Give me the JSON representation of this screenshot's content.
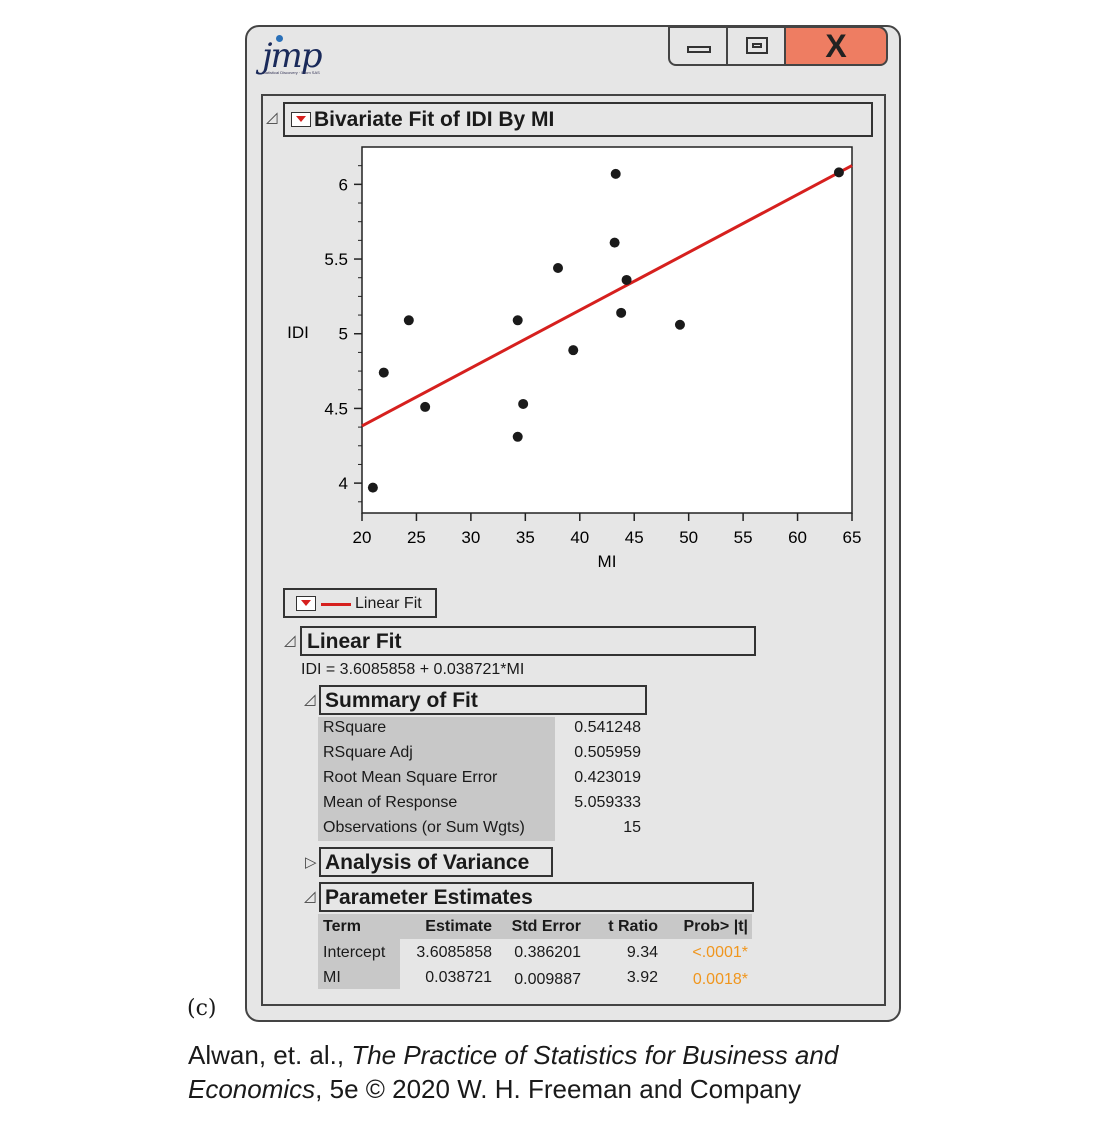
{
  "window": {
    "logo_text": "jmp",
    "logo_tagline": "Statistical Discovery · From SAS",
    "close_glyph": "X"
  },
  "bivariate": {
    "title": "Bivariate Fit of IDI By MI"
  },
  "chart_data": {
    "type": "scatter",
    "title": "",
    "xlabel": "MI",
    "ylabel": "IDI",
    "xlim": [
      20,
      65
    ],
    "ylim": [
      3.8,
      6.25
    ],
    "x_ticks": [
      20,
      25,
      30,
      35,
      40,
      45,
      50,
      55,
      60,
      65
    ],
    "y_ticks": [
      4,
      4.5,
      5,
      5.5,
      6
    ],
    "grid": false,
    "points": [
      {
        "x": 21.0,
        "y": 3.97
      },
      {
        "x": 22.0,
        "y": 4.74
      },
      {
        "x": 24.3,
        "y": 5.09
      },
      {
        "x": 25.8,
        "y": 4.51
      },
      {
        "x": 34.3,
        "y": 5.09
      },
      {
        "x": 34.3,
        "y": 4.31
      },
      {
        "x": 34.8,
        "y": 4.53
      },
      {
        "x": 38.0,
        "y": 5.44
      },
      {
        "x": 39.4,
        "y": 4.89
      },
      {
        "x": 43.2,
        "y": 5.61
      },
      {
        "x": 43.3,
        "y": 6.07
      },
      {
        "x": 43.8,
        "y": 5.14
      },
      {
        "x": 44.3,
        "y": 5.36
      },
      {
        "x": 49.2,
        "y": 5.06
      },
      {
        "x": 63.8,
        "y": 6.08
      }
    ],
    "fit_line": {
      "intercept": 3.6085858,
      "slope": 0.038721,
      "color": "#d6201e"
    }
  },
  "legend": {
    "label": "Linear Fit"
  },
  "linear_fit": {
    "title": "Linear Fit",
    "equation": "IDI = 3.6085858 + 0.038721*MI"
  },
  "summary_of_fit": {
    "title": "Summary of Fit",
    "rows": [
      {
        "label": "RSquare",
        "value": "0.541248"
      },
      {
        "label": "RSquare Adj",
        "value": "0.505959"
      },
      {
        "label": "Root Mean Square Error",
        "value": "0.423019"
      },
      {
        "label": "Mean of Response",
        "value": "5.059333"
      },
      {
        "label": "Observations (or Sum Wgts)",
        "value": "15"
      }
    ]
  },
  "anova": {
    "title": "Analysis of Variance"
  },
  "parameter_estimates": {
    "title": "Parameter Estimates",
    "headers": {
      "term": "Term",
      "estimate": "Estimate",
      "std_error": "Std Error",
      "t_ratio": "t Ratio",
      "prob": "Prob> |t|"
    },
    "rows": [
      {
        "term": "Intercept",
        "estimate": "3.6085858",
        "std_error": "0.386201",
        "t_ratio": "9.34",
        "prob": "<.0001*"
      },
      {
        "term": "MI",
        "estimate": "0.038721",
        "std_error": "0.009887",
        "t_ratio": "3.92",
        "prob": "0.0018*"
      }
    ],
    "prob_color": "#f0961e"
  },
  "caption": {
    "label": "(c)",
    "line1_plain": "Alwan, et. al., ",
    "line1_italic": "The Practice of Statistics for Business and",
    "line2_italic": "Economics",
    "line2_plain": ", 5e © 2020 W. H. Freeman and Company"
  }
}
